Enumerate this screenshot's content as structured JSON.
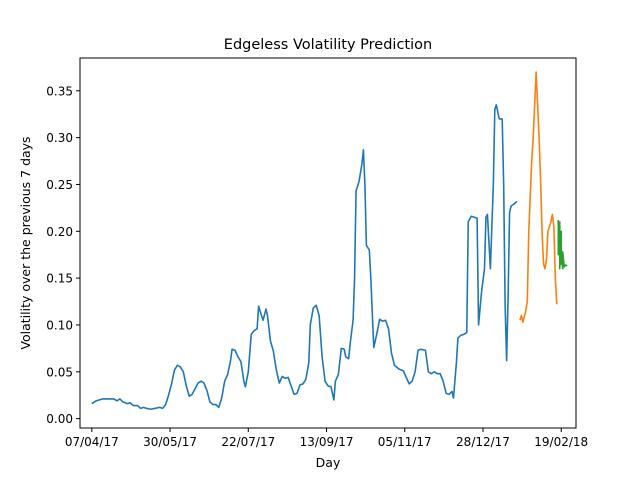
{
  "chart_data": {
    "type": "line",
    "title": "Edgeless Volatility Prediction",
    "xlabel": "Day",
    "ylabel": "Volatility over the previous 7 days",
    "x_tick_labels": [
      "07/04/17",
      "30/05/17",
      "22/07/17",
      "13/09/17",
      "05/11/17",
      "28/12/17",
      "19/02/18"
    ],
    "x_ticks": [
      "2017-04-07",
      "2017-05-30",
      "2017-07-22",
      "2017-09-13",
      "2017-11-05",
      "2017-12-28",
      "2018-02-19"
    ],
    "y_ticks": [
      0.0,
      0.05,
      0.1,
      0.15,
      0.2,
      0.25,
      0.3,
      0.35
    ],
    "y_tick_labels": [
      "0.00",
      "0.05",
      "0.10",
      "0.15",
      "0.20",
      "0.25",
      "0.30",
      "0.35"
    ],
    "xlim": [
      "2017-03-30",
      "2018-03-01"
    ],
    "ylim": [
      -0.01,
      0.385
    ],
    "grid": false,
    "legend": "none",
    "series": [
      {
        "color": "#1f77b4",
        "points": [
          [
            "2017-04-07",
            0.016
          ],
          [
            "2017-04-10",
            0.019
          ],
          [
            "2017-04-14",
            0.021
          ],
          [
            "2017-04-18",
            0.021
          ],
          [
            "2017-04-22",
            0.021
          ],
          [
            "2017-04-24",
            0.019
          ],
          [
            "2017-04-26",
            0.021
          ],
          [
            "2017-04-28",
            0.018
          ],
          [
            "2017-05-01",
            0.016
          ],
          [
            "2017-05-03",
            0.017
          ],
          [
            "2017-05-05",
            0.014
          ],
          [
            "2017-05-08",
            0.014
          ],
          [
            "2017-05-10",
            0.011
          ],
          [
            "2017-05-12",
            0.012
          ],
          [
            "2017-05-14",
            0.011
          ],
          [
            "2017-05-17",
            0.01
          ],
          [
            "2017-05-20",
            0.011
          ],
          [
            "2017-05-23",
            0.012
          ],
          [
            "2017-05-25",
            0.011
          ],
          [
            "2017-05-27",
            0.015
          ],
          [
            "2017-05-29",
            0.025
          ],
          [
            "2017-05-31",
            0.037
          ],
          [
            "2017-06-02",
            0.052
          ],
          [
            "2017-06-04",
            0.057
          ],
          [
            "2017-06-06",
            0.055
          ],
          [
            "2017-06-08",
            0.05
          ],
          [
            "2017-06-10",
            0.035
          ],
          [
            "2017-06-12",
            0.024
          ],
          [
            "2017-06-14",
            0.026
          ],
          [
            "2017-06-16",
            0.032
          ],
          [
            "2017-06-18",
            0.038
          ],
          [
            "2017-06-20",
            0.04
          ],
          [
            "2017-06-22",
            0.038
          ],
          [
            "2017-06-24",
            0.03
          ],
          [
            "2017-06-26",
            0.018
          ],
          [
            "2017-06-28",
            0.015
          ],
          [
            "2017-06-30",
            0.015
          ],
          [
            "2017-07-02",
            0.012
          ],
          [
            "2017-07-04",
            0.022
          ],
          [
            "2017-07-06",
            0.04
          ],
          [
            "2017-07-08",
            0.047
          ],
          [
            "2017-07-10",
            0.062
          ],
          [
            "2017-07-11",
            0.074
          ],
          [
            "2017-07-13",
            0.073
          ],
          [
            "2017-07-15",
            0.066
          ],
          [
            "2017-07-17",
            0.061
          ],
          [
            "2017-07-19",
            0.04
          ],
          [
            "2017-07-20",
            0.034
          ],
          [
            "2017-07-22",
            0.05
          ],
          [
            "2017-07-24",
            0.09
          ],
          [
            "2017-07-26",
            0.094
          ],
          [
            "2017-07-28",
            0.096
          ],
          [
            "2017-07-29",
            0.12
          ],
          [
            "2017-07-31",
            0.11
          ],
          [
            "2017-08-01",
            0.105
          ],
          [
            "2017-08-03",
            0.117
          ],
          [
            "2017-08-04",
            0.11
          ],
          [
            "2017-08-06",
            0.083
          ],
          [
            "2017-08-08",
            0.072
          ],
          [
            "2017-08-10",
            0.052
          ],
          [
            "2017-08-12",
            0.038
          ],
          [
            "2017-08-14",
            0.045
          ],
          [
            "2017-08-16",
            0.043
          ],
          [
            "2017-08-18",
            0.044
          ],
          [
            "2017-08-20",
            0.035
          ],
          [
            "2017-08-22",
            0.026
          ],
          [
            "2017-08-24",
            0.027
          ],
          [
            "2017-08-26",
            0.036
          ],
          [
            "2017-08-28",
            0.037
          ],
          [
            "2017-08-30",
            0.042
          ],
          [
            "2017-09-01",
            0.06
          ],
          [
            "2017-09-02",
            0.1
          ],
          [
            "2017-09-04",
            0.118
          ],
          [
            "2017-09-06",
            0.121
          ],
          [
            "2017-09-08",
            0.11
          ],
          [
            "2017-09-10",
            0.066
          ],
          [
            "2017-09-12",
            0.04
          ],
          [
            "2017-09-14",
            0.035
          ],
          [
            "2017-09-16",
            0.034
          ],
          [
            "2017-09-18",
            0.02
          ],
          [
            "2017-09-19",
            0.04
          ],
          [
            "2017-09-21",
            0.047
          ],
          [
            "2017-09-23",
            0.075
          ],
          [
            "2017-09-25",
            0.074
          ],
          [
            "2017-09-26",
            0.066
          ],
          [
            "2017-09-28",
            0.064
          ],
          [
            "2017-09-29",
            0.08
          ],
          [
            "2017-10-01",
            0.105
          ],
          [
            "2017-10-02",
            0.15
          ],
          [
            "2017-10-03",
            0.243
          ],
          [
            "2017-10-05",
            0.253
          ],
          [
            "2017-10-07",
            0.272
          ],
          [
            "2017-10-08",
            0.287
          ],
          [
            "2017-10-09",
            0.25
          ],
          [
            "2017-10-10",
            0.185
          ],
          [
            "2017-10-12",
            0.18
          ],
          [
            "2017-10-13",
            0.15
          ],
          [
            "2017-10-15",
            0.076
          ],
          [
            "2017-10-17",
            0.09
          ],
          [
            "2017-10-19",
            0.106
          ],
          [
            "2017-10-21",
            0.104
          ],
          [
            "2017-10-23",
            0.105
          ],
          [
            "2017-10-25",
            0.096
          ],
          [
            "2017-10-27",
            0.07
          ],
          [
            "2017-10-29",
            0.057
          ],
          [
            "2017-11-01",
            0.053
          ],
          [
            "2017-11-04",
            0.051
          ],
          [
            "2017-11-06",
            0.044
          ],
          [
            "2017-11-08",
            0.037
          ],
          [
            "2017-11-10",
            0.04
          ],
          [
            "2017-11-12",
            0.05
          ],
          [
            "2017-11-14",
            0.073
          ],
          [
            "2017-11-16",
            0.074
          ],
          [
            "2017-11-19",
            0.073
          ],
          [
            "2017-11-21",
            0.05
          ],
          [
            "2017-11-23",
            0.048
          ],
          [
            "2017-11-25",
            0.05
          ],
          [
            "2017-11-27",
            0.048
          ],
          [
            "2017-11-29",
            0.048
          ],
          [
            "2017-12-01",
            0.04
          ],
          [
            "2017-12-03",
            0.027
          ],
          [
            "2017-12-05",
            0.026
          ],
          [
            "2017-12-07",
            0.029
          ],
          [
            "2017-12-08",
            0.022
          ],
          [
            "2017-12-10",
            0.06
          ],
          [
            "2017-12-11",
            0.086
          ],
          [
            "2017-12-13",
            0.089
          ],
          [
            "2017-12-15",
            0.09
          ],
          [
            "2017-12-17",
            0.092
          ],
          [
            "2017-12-18",
            0.21
          ],
          [
            "2017-12-20",
            0.216
          ],
          [
            "2017-12-22",
            0.215
          ],
          [
            "2017-12-24",
            0.214
          ],
          [
            "2017-12-25",
            0.1
          ],
          [
            "2017-12-27",
            0.135
          ],
          [
            "2017-12-29",
            0.16
          ],
          [
            "2017-12-30",
            0.215
          ],
          [
            "2017-12-31",
            0.218
          ],
          [
            "2018-01-02",
            0.16
          ],
          [
            "2018-01-04",
            0.25
          ],
          [
            "2018-01-05",
            0.33
          ],
          [
            "2018-01-06",
            0.335
          ],
          [
            "2018-01-08",
            0.32
          ],
          [
            "2018-01-10",
            0.32
          ],
          [
            "2018-01-11",
            0.25
          ],
          [
            "2018-01-12",
            0.12
          ],
          [
            "2018-01-13",
            0.062
          ],
          [
            "2018-01-14",
            0.13
          ],
          [
            "2018-01-15",
            0.22
          ],
          [
            "2018-01-16",
            0.227
          ],
          [
            "2018-01-18",
            0.229
          ],
          [
            "2018-01-20",
            0.232
          ]
        ]
      },
      {
        "color": "#ff7f0e",
        "points": [
          [
            "2018-01-22",
            0.105
          ],
          [
            "2018-01-23",
            0.11
          ],
          [
            "2018-01-24",
            0.103
          ],
          [
            "2018-01-26",
            0.115
          ],
          [
            "2018-01-27",
            0.125
          ],
          [
            "2018-01-28",
            0.2
          ],
          [
            "2018-01-30",
            0.275
          ],
          [
            "2018-01-31",
            0.3
          ],
          [
            "2018-02-02",
            0.37
          ],
          [
            "2018-02-04",
            0.3
          ],
          [
            "2018-02-05",
            0.255
          ],
          [
            "2018-02-06",
            0.2
          ],
          [
            "2018-02-07",
            0.165
          ],
          [
            "2018-02-08",
            0.16
          ],
          [
            "2018-02-09",
            0.17
          ],
          [
            "2018-02-10",
            0.2
          ],
          [
            "2018-02-12",
            0.21
          ],
          [
            "2018-02-13",
            0.218
          ],
          [
            "2018-02-14",
            0.205
          ],
          [
            "2018-02-15",
            0.15
          ],
          [
            "2018-02-16",
            0.122
          ]
        ]
      },
      {
        "color": "#2ca02c",
        "points": [
          [
            "2018-02-17",
            0.212
          ],
          [
            "2018-02-17",
            0.175
          ],
          [
            "2018-02-18",
            0.21
          ],
          [
            "2018-02-18",
            0.16
          ],
          [
            "2018-02-19",
            0.2
          ],
          [
            "2018-02-19",
            0.165
          ],
          [
            "2018-02-19",
            0.18
          ],
          [
            "2018-02-20",
            0.16
          ],
          [
            "2018-02-20",
            0.178
          ],
          [
            "2018-02-21",
            0.162
          ],
          [
            "2018-02-22",
            0.164
          ],
          [
            "2018-02-23",
            0.163
          ]
        ]
      }
    ]
  }
}
